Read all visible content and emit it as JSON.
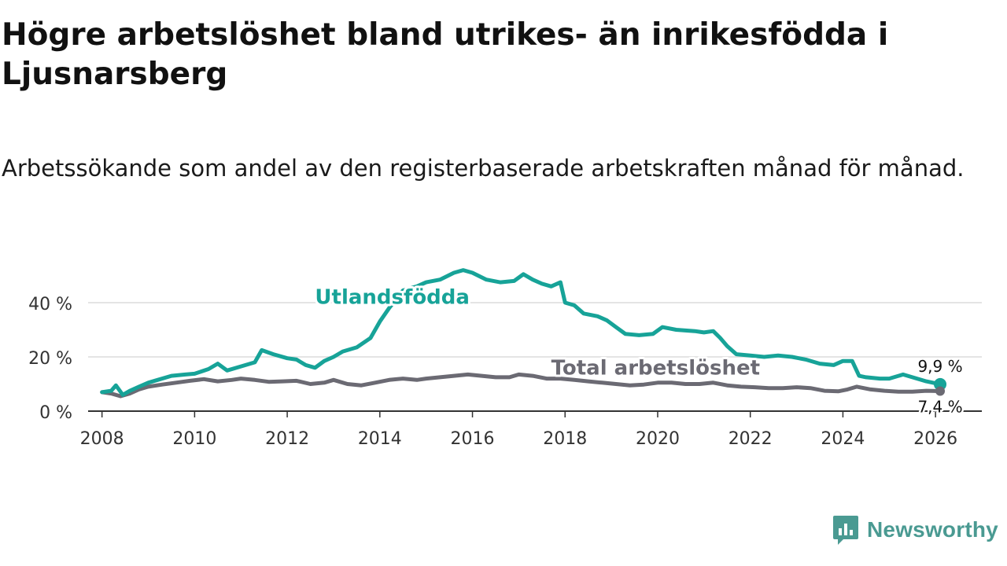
{
  "header": {
    "title": "Högre arbetslöshet bland utrikes- än inrikesfödda i Ljusnarsberg",
    "subtitle": "Arbetssökande som andel av den registerbaserade arbetskraften månad för månad."
  },
  "logo": {
    "text": "Newsworthy",
    "icon": "newsworthy-chart-icon"
  },
  "colors": {
    "foreign": "#17a398",
    "total": "#6b6a73",
    "grid": "#dcdcdc",
    "axis": "#333333"
  },
  "chart_data": {
    "type": "line",
    "title": "Högre arbetslöshet bland utrikes- än inrikesfödda i Ljusnarsberg",
    "subtitle": "Arbetssökande som andel av den registerbaserade arbetskraften månad för månad.",
    "xlabel": "",
    "ylabel": "",
    "xlim": [
      2007.7,
      2027.0
    ],
    "ylim": [
      0,
      52
    ],
    "x_ticks": [
      2008,
      2010,
      2012,
      2014,
      2016,
      2018,
      2020,
      2022,
      2024,
      2026
    ],
    "x_tick_labels": [
      "2008",
      "2010",
      "2012",
      "2014",
      "2016",
      "2018",
      "2020",
      "2022",
      "2024",
      "2026"
    ],
    "y_ticks": [
      0,
      20,
      40
    ],
    "y_tick_labels": [
      "0 %",
      "20 %",
      "40 %"
    ],
    "grid": true,
    "series": [
      {
        "name": "Utlandsfödda",
        "label_at": [
          2012.6,
          39.5
        ],
        "end_label": "9,9 %",
        "x": [
          2008.0,
          2008.2,
          2008.3,
          2008.45,
          2008.6,
          2008.8,
          2009.0,
          2009.2,
          2009.5,
          2009.8,
          2010.0,
          2010.3,
          2010.5,
          2010.7,
          2011.0,
          2011.3,
          2011.45,
          2011.7,
          2012.0,
          2012.2,
          2012.4,
          2012.6,
          2012.8,
          2013.0,
          2013.2,
          2013.5,
          2013.8,
          2014.0,
          2014.2,
          2014.5,
          2014.8,
          2015.0,
          2015.3,
          2015.6,
          2015.8,
          2016.0,
          2016.3,
          2016.6,
          2016.9,
          2017.1,
          2017.3,
          2017.5,
          2017.7,
          2017.9,
          2018.0,
          2018.2,
          2018.4,
          2018.7,
          2018.9,
          2019.1,
          2019.3,
          2019.6,
          2019.9,
          2020.1,
          2020.4,
          2020.8,
          2021.0,
          2021.2,
          2021.35,
          2021.5,
          2021.7,
          2022.0,
          2022.3,
          2022.6,
          2022.9,
          2023.2,
          2023.5,
          2023.8,
          2024.0,
          2024.2,
          2024.35,
          2024.5,
          2024.8,
          2025.0,
          2025.3,
          2025.6,
          2025.8,
          2026.1
        ],
        "values": [
          7.0,
          7.5,
          9.5,
          6.0,
          7.5,
          9.0,
          10.5,
          11.5,
          13.0,
          13.5,
          13.8,
          15.5,
          17.5,
          15.0,
          16.5,
          18.0,
          22.5,
          21.0,
          19.5,
          19.0,
          17.0,
          16.0,
          18.5,
          20.0,
          22.0,
          23.5,
          27.0,
          33.0,
          38.0,
          44.5,
          46.0,
          47.5,
          48.5,
          51.0,
          52.0,
          51.0,
          48.5,
          47.5,
          48.0,
          50.5,
          48.5,
          47.0,
          46.0,
          47.5,
          40.0,
          39.0,
          36.0,
          35.0,
          33.5,
          31.0,
          28.5,
          28.0,
          28.5,
          31.0,
          30.0,
          29.5,
          29.0,
          29.5,
          27.0,
          24.0,
          21.0,
          20.5,
          20.0,
          20.5,
          20.0,
          19.0,
          17.5,
          17.0,
          18.5,
          18.5,
          13.0,
          12.5,
          12.0,
          12.0,
          13.5,
          12.0,
          11.0,
          9.9
        ]
      },
      {
        "name": "Total arbetslöshet",
        "label_at": [
          2017.7,
          13.5
        ],
        "end_label": "7,4 %",
        "x": [
          2008.0,
          2008.2,
          2008.4,
          2008.6,
          2008.8,
          2009.0,
          2009.3,
          2009.6,
          2009.9,
          2010.2,
          2010.5,
          2010.8,
          2011.0,
          2011.3,
          2011.6,
          2011.9,
          2012.2,
          2012.5,
          2012.8,
          2013.0,
          2013.3,
          2013.6,
          2013.9,
          2014.2,
          2014.5,
          2014.8,
          2015.0,
          2015.3,
          2015.6,
          2015.9,
          2016.2,
          2016.5,
          2016.8,
          2017.0,
          2017.3,
          2017.6,
          2017.9,
          2018.2,
          2018.5,
          2018.8,
          2019.1,
          2019.4,
          2019.7,
          2020.0,
          2020.3,
          2020.6,
          2020.9,
          2021.2,
          2021.5,
          2021.8,
          2022.1,
          2022.4,
          2022.7,
          2023.0,
          2023.3,
          2023.6,
          2023.9,
          2024.1,
          2024.3,
          2024.6,
          2024.9,
          2025.2,
          2025.5,
          2025.8,
          2026.1
        ],
        "values": [
          7.0,
          6.5,
          5.5,
          6.5,
          8.0,
          9.0,
          9.8,
          10.5,
          11.2,
          11.8,
          11.0,
          11.5,
          12.0,
          11.5,
          10.8,
          11.0,
          11.2,
          10.0,
          10.5,
          11.5,
          10.0,
          9.5,
          10.5,
          11.5,
          12.0,
          11.5,
          12.0,
          12.5,
          13.0,
          13.5,
          13.0,
          12.5,
          12.5,
          13.5,
          13.0,
          12.0,
          12.0,
          11.5,
          11.0,
          10.5,
          10.0,
          9.5,
          9.8,
          10.5,
          10.5,
          10.0,
          10.0,
          10.5,
          9.5,
          9.0,
          8.8,
          8.5,
          8.5,
          8.8,
          8.5,
          7.5,
          7.3,
          8.0,
          9.0,
          8.0,
          7.5,
          7.2,
          7.2,
          7.5,
          7.4
        ]
      }
    ]
  }
}
